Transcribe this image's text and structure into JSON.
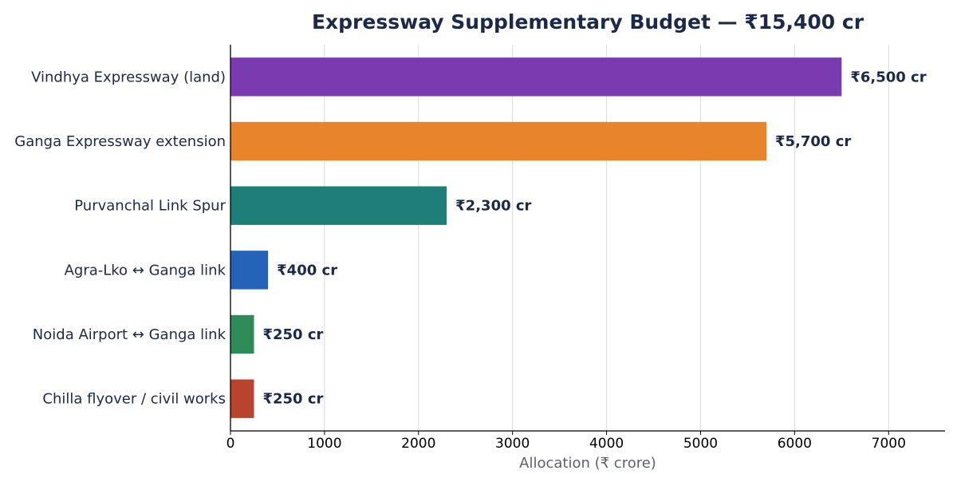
{
  "chart_data": {
    "type": "bar",
    "orientation": "horizontal",
    "title": "Expressway Supplementary Budget — ₹15,400 cr",
    "xlabel": "Allocation (₹ crore)",
    "ylabel": "",
    "xlim": [
      0,
      7600
    ],
    "xticks": [
      0,
      1000,
      2000,
      3000,
      4000,
      5000,
      6000,
      7000
    ],
    "grid": "vertical",
    "categories": [
      "Vindhya Expressway (land)",
      "Ganga Expressway extension",
      "Purvanchal Link Spur",
      "Agra-Lko ↔ Ganga link",
      "Noida Airport ↔ Ganga link",
      "Chilla flyover / civil works"
    ],
    "values": [
      6500,
      5700,
      2300,
      400,
      250,
      250
    ],
    "value_labels": [
      "₹6,500 cr",
      "₹5,700 cr",
      "₹2,300 cr",
      "₹400 cr",
      "₹250 cr",
      "₹250 cr"
    ],
    "colors": [
      "#7b3bb0",
      "#e8852c",
      "#1f7f78",
      "#2563b9",
      "#2e8b57",
      "#b8432f"
    ]
  }
}
